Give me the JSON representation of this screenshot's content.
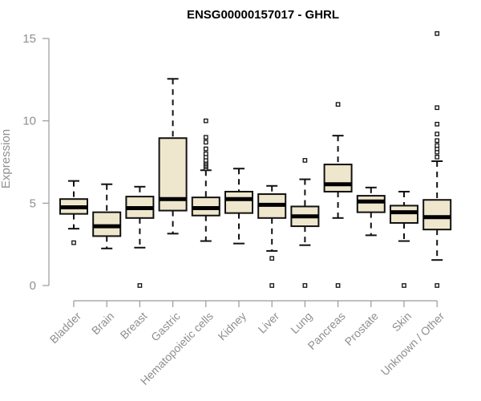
{
  "chart_data": {
    "type": "boxplot",
    "title": "ENSG00000157017 - GHRL",
    "xlabel": "",
    "ylabel": "Expression",
    "ylim": [
      0,
      15
    ],
    "yticks": [
      0,
      5,
      10,
      15
    ],
    "grid": false,
    "box_fill": "#efe7cd",
    "box_stroke": "#111111",
    "median_stroke": "#000000",
    "axis_color": "#9a9a9a",
    "text_color": "#8f8f8f",
    "categories": [
      "Bladder",
      "Brain",
      "Breast",
      "Gastric",
      "Hematopoietic cells",
      "Kidney",
      "Liver",
      "Lung",
      "Pancreas",
      "Prostate",
      "Skin",
      "Unknown / Other"
    ],
    "boxes": [
      {
        "q1": 4.35,
        "median": 4.75,
        "q3": 5.25,
        "whisker_low": 3.45,
        "whisker_high": 6.35,
        "outliers": [
          2.6
        ]
      },
      {
        "q1": 3.0,
        "median": 3.6,
        "q3": 4.45,
        "whisker_low": 2.25,
        "whisker_high": 6.15,
        "outliers": []
      },
      {
        "q1": 4.1,
        "median": 4.7,
        "q3": 5.4,
        "whisker_low": 2.3,
        "whisker_high": 6.0,
        "outliers": [
          0.0
        ]
      },
      {
        "q1": 4.55,
        "median": 5.25,
        "q3": 8.95,
        "whisker_low": 3.15,
        "whisker_high": 12.55,
        "outliers": []
      },
      {
        "q1": 4.25,
        "median": 4.7,
        "q3": 5.35,
        "whisker_low": 2.7,
        "whisker_high": 7.0,
        "outliers": [
          7.1,
          7.2,
          7.3,
          7.4,
          7.5,
          7.6,
          7.8,
          8.0,
          8.3,
          8.7,
          9.0,
          10.0
        ]
      },
      {
        "q1": 4.4,
        "median": 5.25,
        "q3": 5.7,
        "whisker_low": 2.55,
        "whisker_high": 7.1,
        "outliers": []
      },
      {
        "q1": 4.1,
        "median": 4.9,
        "q3": 5.55,
        "whisker_low": 2.1,
        "whisker_high": 6.05,
        "outliers": [
          1.65,
          0.0
        ]
      },
      {
        "q1": 3.6,
        "median": 4.2,
        "q3": 4.8,
        "whisker_low": 2.45,
        "whisker_high": 6.45,
        "outliers": [
          7.6,
          0.0
        ]
      },
      {
        "q1": 5.7,
        "median": 6.15,
        "q3": 7.35,
        "whisker_low": 4.1,
        "whisker_high": 9.1,
        "outliers": [
          11.0,
          0.0
        ]
      },
      {
        "q1": 4.45,
        "median": 5.1,
        "q3": 5.45,
        "whisker_low": 3.05,
        "whisker_high": 5.95,
        "outliers": []
      },
      {
        "q1": 3.8,
        "median": 4.45,
        "q3": 4.85,
        "whisker_low": 2.7,
        "whisker_high": 5.7,
        "outliers": [
          0.0
        ]
      },
      {
        "q1": 3.4,
        "median": 4.15,
        "q3": 5.2,
        "whisker_low": 1.55,
        "whisker_high": 7.55,
        "outliers": [
          7.8,
          8.1,
          8.3,
          8.5,
          8.8,
          9.2,
          9.8,
          10.8,
          15.3,
          0.0
        ]
      }
    ]
  }
}
